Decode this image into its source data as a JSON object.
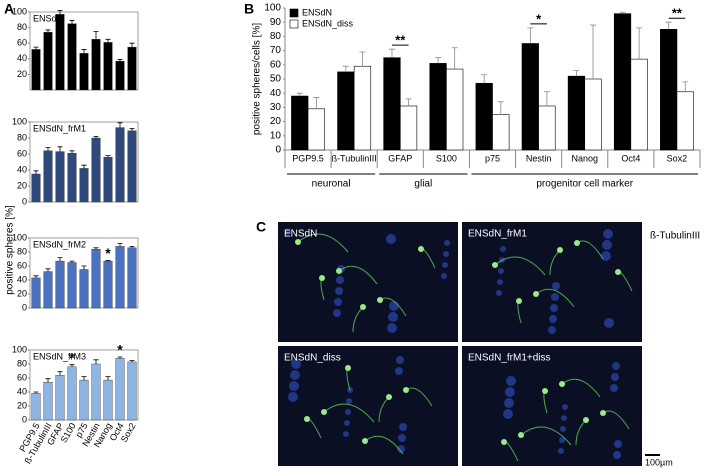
{
  "panel_labels": [
    "A",
    "B",
    "C"
  ],
  "y_label_a": "positive spheres [%]",
  "chart_data": [
    {
      "type": "bar",
      "title": "ENSdN",
      "color": "#000000",
      "values": [
        52,
        74,
        97,
        85,
        47,
        65,
        61,
        37,
        55
      ],
      "errors": [
        3,
        3,
        5,
        4,
        5,
        10,
        4,
        2,
        5
      ],
      "ylim": [
        0,
        100
      ],
      "yticks": [
        20,
        40,
        60,
        80,
        100
      ]
    },
    {
      "type": "bar",
      "title": "ENSdN_frM1",
      "color": "#2e4a7d",
      "values": [
        35,
        64,
        63,
        61,
        42,
        80,
        56,
        93,
        89
      ],
      "errors": [
        4,
        4,
        6,
        3,
        4,
        2,
        2,
        6,
        3
      ],
      "ylim": [
        0,
        100
      ],
      "yticks": [
        0,
        20,
        40,
        60,
        80,
        100
      ]
    },
    {
      "type": "bar",
      "title": "ENSdN_frM2",
      "color": "#4a72c0",
      "values": [
        43,
        52,
        67,
        65,
        55,
        84,
        67,
        88,
        86
      ],
      "errors": [
        3,
        4,
        5,
        2,
        5,
        2,
        1,
        4,
        2
      ],
      "ylim": [
        0,
        100
      ],
      "yticks": [
        0,
        20,
        40,
        60,
        80,
        100
      ],
      "annotations": [
        {
          "text": "*",
          "index": 6
        }
      ]
    },
    {
      "type": "bar",
      "title": "ENSdN_frM3",
      "color": "#8eb4e3",
      "categories": [
        "PGP9.5",
        "ß-TubulinIII",
        "GFAP",
        "S100",
        "p75",
        "Nestin",
        "Nanog",
        "Oct4",
        "Sox2"
      ],
      "values": [
        38,
        54,
        64,
        76,
        57,
        80,
        57,
        88,
        83
      ],
      "errors": [
        2,
        5,
        5,
        3,
        5,
        6,
        5,
        2,
        2
      ],
      "ylim": [
        0,
        100
      ],
      "yticks": [
        0,
        20,
        40,
        60,
        80,
        100
      ],
      "annotations": [
        {
          "text": "*",
          "index": 3
        },
        {
          "text": "*",
          "index": 7
        }
      ]
    },
    {
      "type": "grouped_bar",
      "y_label": "positive spheres/cells [%]",
      "categories": [
        "PGP9.5",
        "ß-TubulinIII",
        "GFAP",
        "S100",
        "p75",
        "Nestin",
        "Nanog",
        "Oct4",
        "Sox2"
      ],
      "series": [
        {
          "name": "ENSdN",
          "color": "#000000",
          "values": [
            38,
            55,
            65,
            61,
            47,
            75,
            52,
            96,
            85
          ],
          "errors": [
            2,
            4,
            6,
            4,
            6,
            11,
            4,
            1,
            5
          ]
        },
        {
          "name": "ENSdN_diss",
          "color": "#ffffff",
          "values": [
            29,
            59,
            31,
            57,
            25,
            31,
            50,
            64,
            41
          ],
          "errors": [
            8,
            10,
            5,
            15,
            9,
            10,
            38,
            22,
            7
          ]
        }
      ],
      "ylim": [
        0,
        100
      ],
      "yticks": [
        0,
        10,
        20,
        30,
        40,
        50,
        60,
        70,
        80,
        90,
        100
      ],
      "legend": "top-left",
      "annotations": [
        {
          "text": "**",
          "index": 2
        },
        {
          "text": "*",
          "index": 5
        },
        {
          "text": "**",
          "index": 8
        }
      ],
      "groups": [
        {
          "label": "neuronal",
          "from": 0,
          "to": 1
        },
        {
          "label": "glial",
          "from": 2,
          "to": 3
        },
        {
          "label": "progenitor cell marker",
          "from": 4,
          "to": 8
        }
      ]
    }
  ],
  "figure_c": {
    "panels": [
      "ENSdN",
      "ENSdN_frM1",
      "ENSdN_diss",
      "ENSdN_frM1+diss"
    ],
    "stain": "ß-TubulinIII",
    "scale": "100µm"
  }
}
